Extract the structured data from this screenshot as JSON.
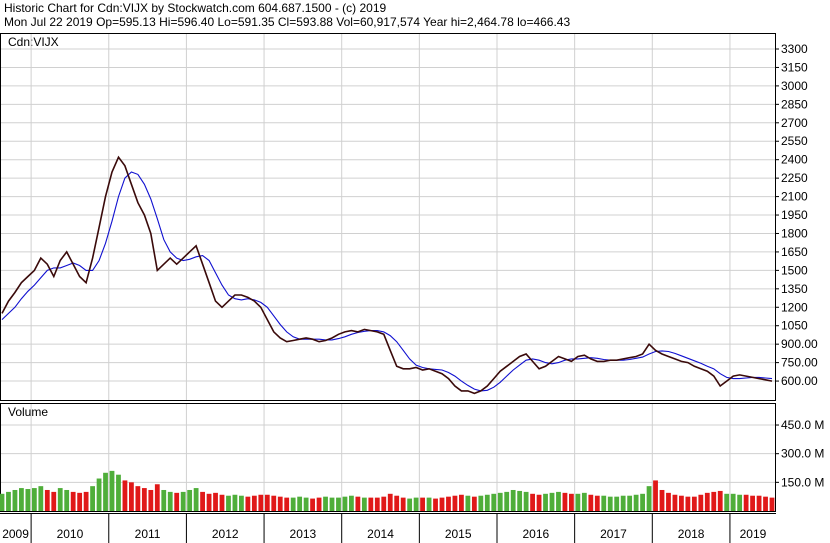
{
  "header": {
    "title": "Historic Chart for Cdn:VIJX by Stockwatch.com 604.687.1500 - (c) 2019",
    "quote": "Mon Jul 22 2019   Op=595.13   Hi=596.40   Lo=591.35   Cl=593.88   Vol=60,917,574   Year hi=2,464.78   lo=466.43"
  },
  "chart_data": [
    {
      "type": "line",
      "grid": true,
      "ylim": [
        446,
        3422
      ],
      "yticks": [
        {
          "value": 600,
          "label": "600.00"
        },
        {
          "value": 750,
          "label": "750.00"
        },
        {
          "value": 900,
          "label": "900.00"
        },
        1050,
        1200,
        1350,
        1500,
        1650,
        1800,
        1950,
        2100,
        2250,
        2400,
        2550,
        2700,
        2850,
        3000,
        3150,
        3300
      ],
      "series": [
        {
          "name": "Cdn:VIJX",
          "color": "#3a0a0a",
          "values": [
            1150,
            1250,
            1320,
            1400,
            1450,
            1500,
            1600,
            1550,
            1450,
            1580,
            1650,
            1550,
            1450,
            1400,
            1600,
            1850,
            2100,
            2300,
            2420,
            2350,
            2200,
            2050,
            1950,
            1800,
            1500,
            1550,
            1600,
            1550,
            1600,
            1650,
            1700,
            1550,
            1400,
            1250,
            1200,
            1250,
            1300,
            1300,
            1280,
            1250,
            1200,
            1100,
            1000,
            950,
            920,
            930,
            940,
            950,
            940,
            920,
            930,
            950,
            980,
            1000,
            1010,
            1000,
            1020,
            1010,
            1000,
            980,
            850,
            720,
            700,
            700,
            710,
            690,
            700,
            680,
            660,
            620,
            560,
            520,
            520,
            500,
            520,
            560,
            620,
            680,
            720,
            760,
            800,
            820,
            760,
            700,
            720,
            760,
            800,
            780,
            760,
            800,
            810,
            780,
            760,
            760,
            770,
            770,
            780,
            790,
            800,
            820,
            900,
            850,
            820,
            800,
            780,
            760,
            750,
            720,
            700,
            680,
            640,
            560,
            600,
            640,
            650,
            640,
            630,
            620,
            610,
            600
          ]
        },
        {
          "color": "#1010d0",
          "values": [
            1100,
            1150,
            1200,
            1270,
            1330,
            1380,
            1440,
            1500,
            1520,
            1520,
            1540,
            1560,
            1540,
            1500,
            1500,
            1580,
            1720,
            1900,
            2100,
            2250,
            2300,
            2280,
            2200,
            2080,
            1920,
            1750,
            1650,
            1600,
            1580,
            1590,
            1610,
            1620,
            1580,
            1480,
            1380,
            1300,
            1270,
            1260,
            1270,
            1260,
            1240,
            1200,
            1130,
            1060,
            1000,
            960,
            940,
            940,
            940,
            940,
            935,
            935,
            945,
            960,
            980,
            995,
            1005,
            1010,
            1010,
            1000,
            970,
            920,
            850,
            780,
            730,
            710,
            700,
            695,
            690,
            670,
            640,
            600,
            565,
            535,
            520,
            525,
            550,
            590,
            640,
            690,
            730,
            770,
            780,
            770,
            750,
            740,
            750,
            770,
            780,
            780,
            785,
            790,
            785,
            775,
            770,
            770,
            770,
            775,
            785,
            795,
            820,
            840,
            845,
            840,
            825,
            805,
            785,
            765,
            745,
            720,
            700,
            660,
            630,
            620,
            620,
            625,
            630,
            630,
            625,
            620
          ]
        }
      ]
    },
    {
      "type": "bar",
      "title": "Volume",
      "up_color": "#4fae3a",
      "down_color": "#e01818",
      "ylim": [
        0,
        560
      ],
      "yticks": [
        {
          "value": 150,
          "label": "150.0 M"
        },
        {
          "value": 300,
          "label": "300.0 M"
        },
        {
          "value": 450,
          "label": "450.0 M"
        }
      ],
      "categories": [
        "2009",
        null,
        null,
        null,
        null,
        "2010",
        null,
        null,
        null,
        null,
        null,
        null,
        null,
        null,
        null,
        null,
        null,
        "2011",
        null,
        null,
        null,
        null,
        null,
        null,
        null,
        null,
        null,
        null,
        null,
        "2012",
        null,
        null,
        null,
        null,
        null,
        null,
        null,
        null,
        null,
        null,
        null,
        "2013",
        null,
        null,
        null,
        null,
        null,
        null,
        null,
        null,
        null,
        null,
        null,
        "2014",
        null,
        null,
        null,
        null,
        null,
        null,
        null,
        null,
        null,
        null,
        null,
        "2015",
        null,
        null,
        null,
        null,
        null,
        null,
        null,
        null,
        null,
        null,
        null,
        "2016",
        null,
        null,
        null,
        null,
        null,
        null,
        null,
        null,
        null,
        null,
        null,
        "2017",
        null,
        null,
        null,
        null,
        null,
        null,
        null,
        null,
        null,
        null,
        null,
        "2018",
        null,
        null,
        null,
        null,
        null,
        null,
        null,
        null,
        null,
        null,
        null,
        "2019",
        null,
        null,
        null,
        null,
        null,
        null
      ],
      "values": [
        90,
        100,
        110,
        120,
        115,
        120,
        130,
        110,
        100,
        120,
        110,
        100,
        95,
        100,
        130,
        170,
        200,
        210,
        190,
        160,
        150,
        130,
        120,
        110,
        140,
        110,
        100,
        95,
        100,
        110,
        120,
        100,
        90,
        95,
        85,
        80,
        85,
        80,
        75,
        80,
        85,
        85,
        80,
        75,
        70,
        70,
        75,
        70,
        65,
        70,
        75,
        70,
        70,
        75,
        80,
        75,
        70,
        70,
        70,
        75,
        90,
        80,
        70,
        65,
        70,
        70,
        70,
        65,
        70,
        75,
        80,
        85,
        80,
        75,
        80,
        85,
        90,
        95,
        100,
        110,
        105,
        100,
        90,
        85,
        90,
        95,
        100,
        95,
        90,
        90,
        95,
        85,
        80,
        80,
        75,
        75,
        80,
        80,
        85,
        90,
        130,
        160,
        110,
        95,
        85,
        80,
        75,
        75,
        85,
        95,
        100,
        105,
        90,
        90,
        85,
        85,
        80,
        80,
        75,
        70
      ]
    }
  ]
}
